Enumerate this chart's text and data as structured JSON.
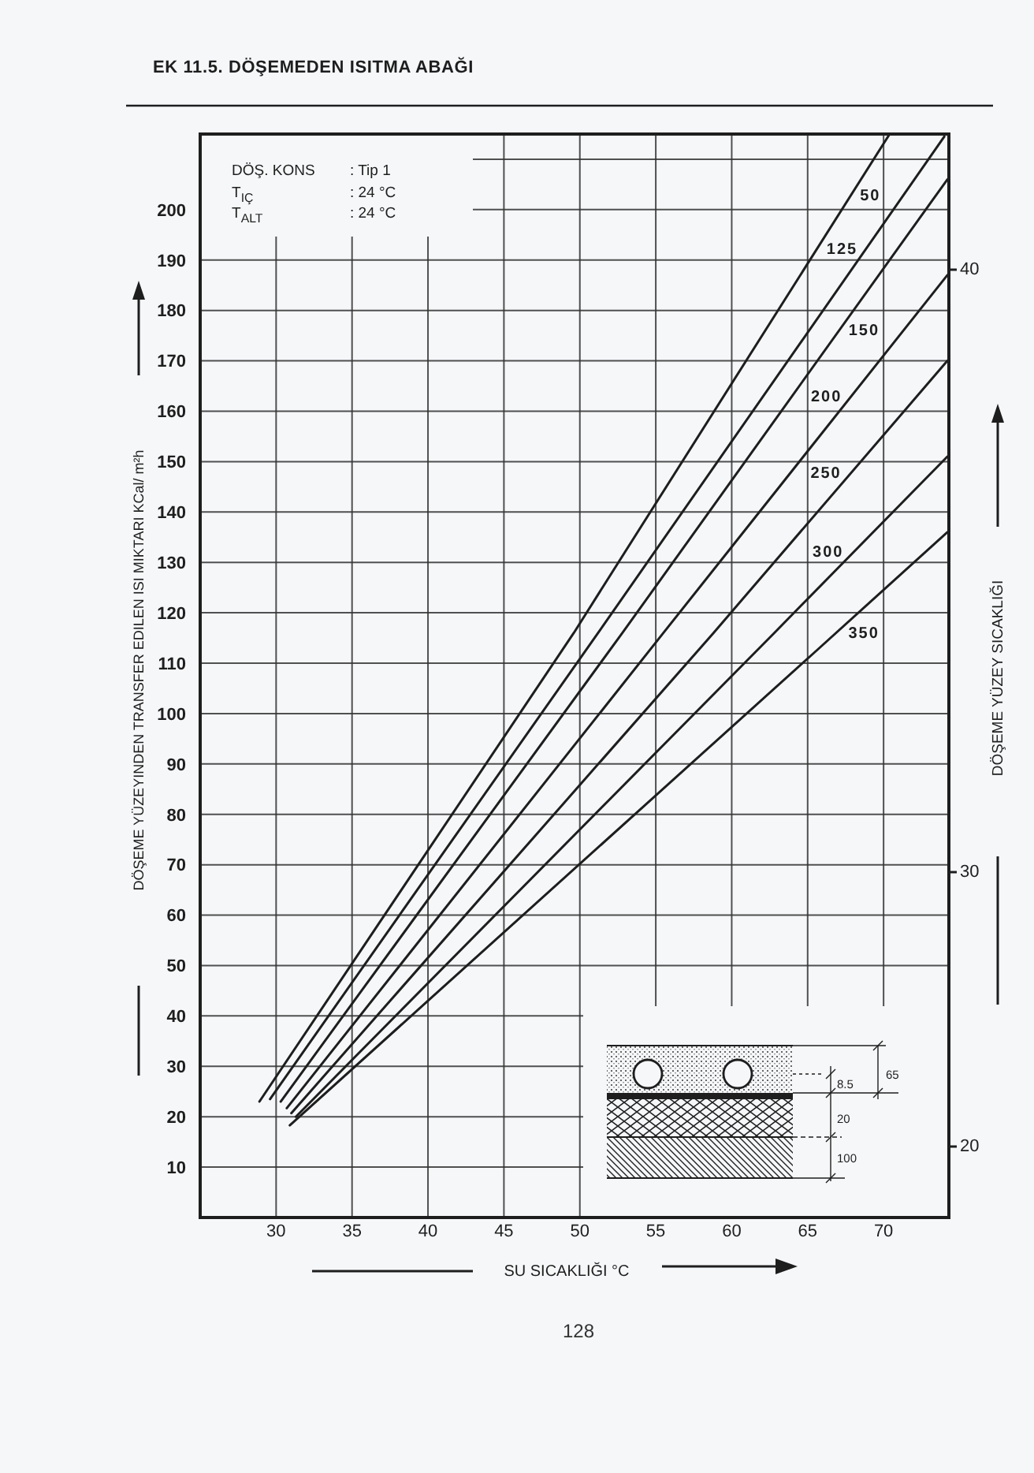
{
  "chart_data": {
    "type": "line",
    "title": "EK 11.5. DÖŞEMEDEN ISITMA ABAĞI",
    "xlabel": "SU SICAKLIĞI °C",
    "ylabel": "DÖŞEME YÜZEYINDEN TRANSFER EDILEN ISI MIKTARI KCal/ m²h",
    "y2label": "DÖŞEME YÜZEY SICAKLIĞI",
    "series": [
      {
        "name": "50",
        "color": "#1e1e1e",
        "x": [
          28.9,
          49.6,
          70.4
        ],
        "values": [
          23,
          116,
          215
        ]
      },
      {
        "name": "125",
        "color": "#1e1e1e",
        "x": [
          29.6,
          51.2,
          74.0
        ],
        "values": [
          23.5,
          116,
          214.5
        ]
      },
      {
        "name": "150",
        "color": "#1e1e1e",
        "x": [
          30.3,
          52.8,
          74.2
        ],
        "values": [
          23,
          116,
          206
        ]
      },
      {
        "name": "200",
        "color": "#1e1e1e",
        "x": [
          30.7,
          55.5,
          74.2
        ],
        "values": [
          21.7,
          116,
          187
        ]
      },
      {
        "name": "250",
        "color": "#1e1e1e",
        "x": [
          31.0,
          58.8,
          74.2
        ],
        "values": [
          20.7,
          116,
          170
        ]
      },
      {
        "name": "300",
        "color": "#1e1e1e",
        "x": [
          31.3,
          62.8,
          74.2
        ],
        "values": [
          20,
          116,
          151
        ]
      },
      {
        "name": "350",
        "color": "#1e1e1e",
        "x": [
          30.9,
          65.4,
          74.2
        ],
        "values": [
          18.3,
          112,
          136
        ]
      }
    ],
    "xlim": [
      25,
      74.3
    ],
    "xticks": [
      30,
      35,
      40,
      45,
      50,
      55,
      60,
      65,
      70
    ],
    "ylim": [
      0,
      215
    ],
    "yticks": [
      10,
      20,
      30,
      40,
      50,
      60,
      70,
      80,
      90,
      100,
      110,
      120,
      130,
      140,
      150,
      160,
      170,
      180,
      190,
      200,
      {
        "value": 210,
        "label": null
      }
    ],
    "grid": true,
    "marker": "none",
    "line_style": "solid",
    "annotations": [
      "DÖŞ. KONS",
      ": Tip 1",
      "T$_{IÇ}$",
      ": 24 °C",
      "T$_{ALT}$",
      ": 24 °C",
      "40",
      "30",
      "20",
      "8.5",
      "65",
      "20",
      "100",
      "128"
    ]
  }
}
